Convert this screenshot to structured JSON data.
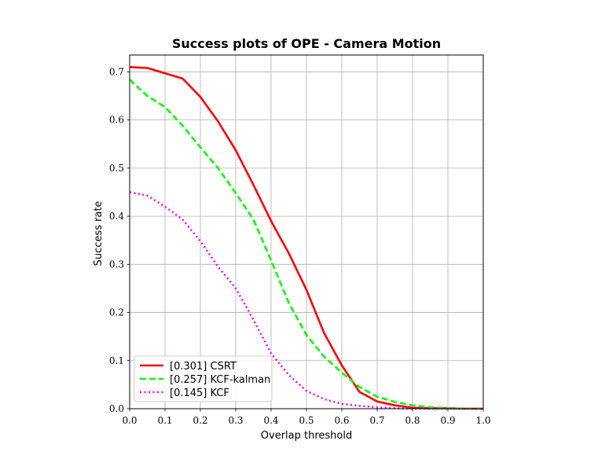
{
  "chart_data": {
    "type": "line",
    "title": "Success plots of OPE - Camera Motion",
    "xlabel": "Overlap threshold",
    "ylabel": "Success rate",
    "xlim": [
      0.0,
      1.0
    ],
    "ylim": [
      0.0,
      0.735
    ],
    "grid": true,
    "legend_position": "lower-left",
    "x_ticks": [
      0.0,
      0.1,
      0.2,
      0.3,
      0.4,
      0.5,
      0.6,
      0.7,
      0.8,
      0.9,
      1.0
    ],
    "x_tick_labels": [
      "0.0",
      "0.1",
      "0.2",
      "0.3",
      "0.4",
      "0.5",
      "0.6",
      "0.7",
      "0.8",
      "0.9",
      "1.0"
    ],
    "y_ticks": [
      0.0,
      0.1,
      0.2,
      0.3,
      0.4,
      0.5,
      0.6,
      0.7
    ],
    "y_tick_labels": [
      "0.0",
      "0.1",
      "0.2",
      "0.3",
      "0.4",
      "0.5",
      "0.6",
      "0.7"
    ],
    "x": [
      0.0,
      0.05,
      0.1,
      0.15,
      0.2,
      0.25,
      0.3,
      0.35,
      0.4,
      0.45,
      0.5,
      0.55,
      0.6,
      0.65,
      0.7,
      0.75,
      0.8,
      0.85,
      0.9,
      0.95,
      1.0
    ],
    "series": [
      {
        "name": "[0.301] CSRT",
        "color": "#ff0000",
        "style": "solid",
        "values": [
          0.71,
          0.708,
          0.697,
          0.686,
          0.648,
          0.597,
          0.537,
          0.465,
          0.39,
          0.323,
          0.247,
          0.157,
          0.09,
          0.035,
          0.015,
          0.007,
          0.002,
          0.001,
          0.001,
          0.0,
          0.0
        ]
      },
      {
        "name": "[0.257] KCF-kalman",
        "color": "#00ff00",
        "style": "dashed",
        "values": [
          0.684,
          0.65,
          0.627,
          0.588,
          0.543,
          0.5,
          0.448,
          0.393,
          0.308,
          0.22,
          0.153,
          0.108,
          0.075,
          0.045,
          0.025,
          0.014,
          0.007,
          0.003,
          0.001,
          0.0,
          0.0
        ]
      },
      {
        "name": "[0.145] KCF",
        "color": "#ff00ff",
        "style": "dotted",
        "values": [
          0.45,
          0.443,
          0.42,
          0.393,
          0.348,
          0.295,
          0.25,
          0.185,
          0.115,
          0.07,
          0.037,
          0.02,
          0.01,
          0.006,
          0.003,
          0.001,
          0.0,
          0.0,
          0.0,
          0.0,
          0.0
        ]
      }
    ]
  }
}
